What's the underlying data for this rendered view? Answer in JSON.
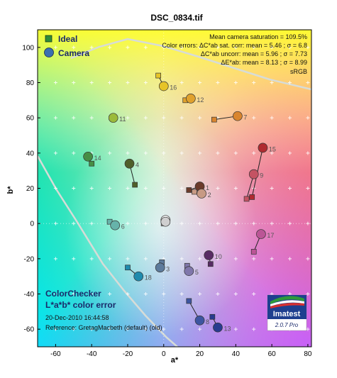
{
  "title": "DSC_0834.tif",
  "chart_data": {
    "type": "scatter",
    "xlabel": "a*",
    "ylabel": "b*",
    "xlim": [
      -70,
      82
    ],
    "ylim": [
      -70,
      110
    ],
    "xticks": [
      -60,
      -40,
      -20,
      0,
      20,
      40,
      60,
      80
    ],
    "yticks": [
      -60,
      -40,
      -20,
      0,
      20,
      40,
      60,
      80,
      100
    ],
    "legend": {
      "placement": "top-left",
      "items": [
        {
          "label": "Ideal",
          "marker": "square",
          "color": "#2f8c3a"
        },
        {
          "label": "Camera",
          "marker": "circle",
          "color": "#3a6fb0"
        }
      ]
    },
    "stats": [
      "Mean camera saturation = 109.5%",
      "Color errors: ΔC*ab sat. corr:  mean = 5.46 ;  σ = 6.8",
      "ΔC*ab uncorr:  mean = 5.96 ;  σ = 7.73",
      "ΔE*ab:  mean = 8.13 ;  σ = 8.99",
      "sRGB"
    ],
    "info": {
      "title1": "ColorChecker",
      "title2": "L*a*b* color error",
      "date": "20-Dec-2010 16:44:58",
      "reference": "Reference: GretagMacbeth (default) (old)"
    },
    "logo": {
      "name": "Imatest",
      "version": "2.0.7  Pro"
    },
    "points": [
      {
        "id": "1",
        "ideal": [
          14,
          19
        ],
        "camera": [
          20,
          21
        ],
        "color": "#6b3b2a"
      },
      {
        "id": "2",
        "ideal": [
          17,
          18
        ],
        "camera": [
          21,
          17
        ],
        "color": "#c79a84"
      },
      {
        "id": "3",
        "ideal": [
          -1,
          -22
        ],
        "camera": [
          -2,
          -25
        ],
        "color": "#5d7b9c"
      },
      {
        "id": "4",
        "ideal": [
          -16,
          22
        ],
        "camera": [
          -19,
          34
        ],
        "color": "#505f2a"
      },
      {
        "id": "5",
        "ideal": [
          13,
          -24
        ],
        "camera": [
          14,
          -27
        ],
        "color": "#8077ab"
      },
      {
        "id": "6",
        "ideal": [
          -30,
          1
        ],
        "camera": [
          -27,
          -1
        ],
        "color": "#66b3aa"
      },
      {
        "id": "7",
        "ideal": [
          28,
          59
        ],
        "camera": [
          41,
          61
        ],
        "color": "#d9852e"
      },
      {
        "id": "8",
        "ideal": [
          14,
          -44
        ],
        "camera": [
          20,
          -55
        ],
        "color": "#3d55a1"
      },
      {
        "id": "9",
        "ideal": [
          46,
          14
        ],
        "camera": [
          50,
          28
        ],
        "color": "#c45363"
      },
      {
        "id": "10",
        "ideal": [
          26,
          -23
        ],
        "camera": [
          25,
          -18
        ],
        "color": "#582c64"
      },
      {
        "id": "11",
        "ideal": [
          -28,
          60
        ],
        "camera": [
          -28,
          60
        ],
        "color": "#9bba3a"
      },
      {
        "id": "12",
        "ideal": [
          12,
          70
        ],
        "camera": [
          15,
          71
        ],
        "color": "#e0a12d"
      },
      {
        "id": "13",
        "ideal": [
          27,
          -53
        ],
        "camera": [
          30,
          -59
        ],
        "color": "#283b8f"
      },
      {
        "id": "14",
        "ideal": [
          -40,
          34
        ],
        "camera": [
          -42,
          38
        ],
        "color": "#468e45"
      },
      {
        "id": "15",
        "ideal": [
          49,
          15
        ],
        "camera": [
          55,
          43
        ],
        "color": "#b02b30"
      },
      {
        "id": "16",
        "ideal": [
          -3,
          84
        ],
        "camera": [
          0,
          78
        ],
        "color": "#e6c428"
      },
      {
        "id": "17",
        "ideal": [
          50,
          -16
        ],
        "camera": [
          54,
          -6
        ],
        "color": "#bb5596"
      },
      {
        "id": "18",
        "ideal": [
          -20,
          -25
        ],
        "camera": [
          -14,
          -30
        ],
        "color": "#1f8bad"
      },
      {
        "id": "",
        "ideal": [
          0,
          0
        ],
        "camera": [
          1,
          2
        ],
        "color": "#f2f2f2"
      },
      {
        "id": "",
        "ideal": [
          0,
          0
        ],
        "camera": [
          1,
          1
        ],
        "color": "#cfcfcf"
      }
    ]
  }
}
